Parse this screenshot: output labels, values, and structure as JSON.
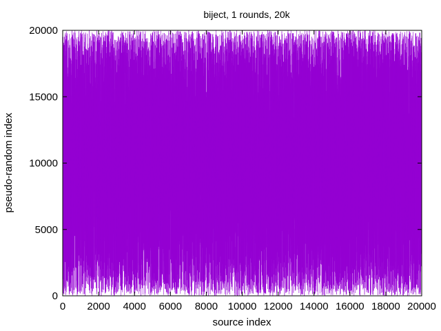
{
  "chart_data": {
    "type": "line",
    "title": "biject, 1 rounds, 20k",
    "xlabel": "source index",
    "ylabel": "pseudo-random index",
    "xlim": [
      0,
      20000
    ],
    "ylim": [
      0,
      20000
    ],
    "x_ticks": [
      0,
      2000,
      4000,
      6000,
      8000,
      10000,
      12000,
      14000,
      16000,
      18000,
      20000
    ],
    "y_ticks": [
      0,
      5000,
      10000,
      15000,
      20000
    ],
    "grid": false,
    "legend": "none",
    "series": [
      {
        "color": "#9400d3",
        "n_points": 20000,
        "description_of_values": "each source index x in 0..19999 maps to a pseudo-random index y in 0..19999 (bijection); consecutive points joined by lines, filling the plot area"
      }
    ]
  }
}
